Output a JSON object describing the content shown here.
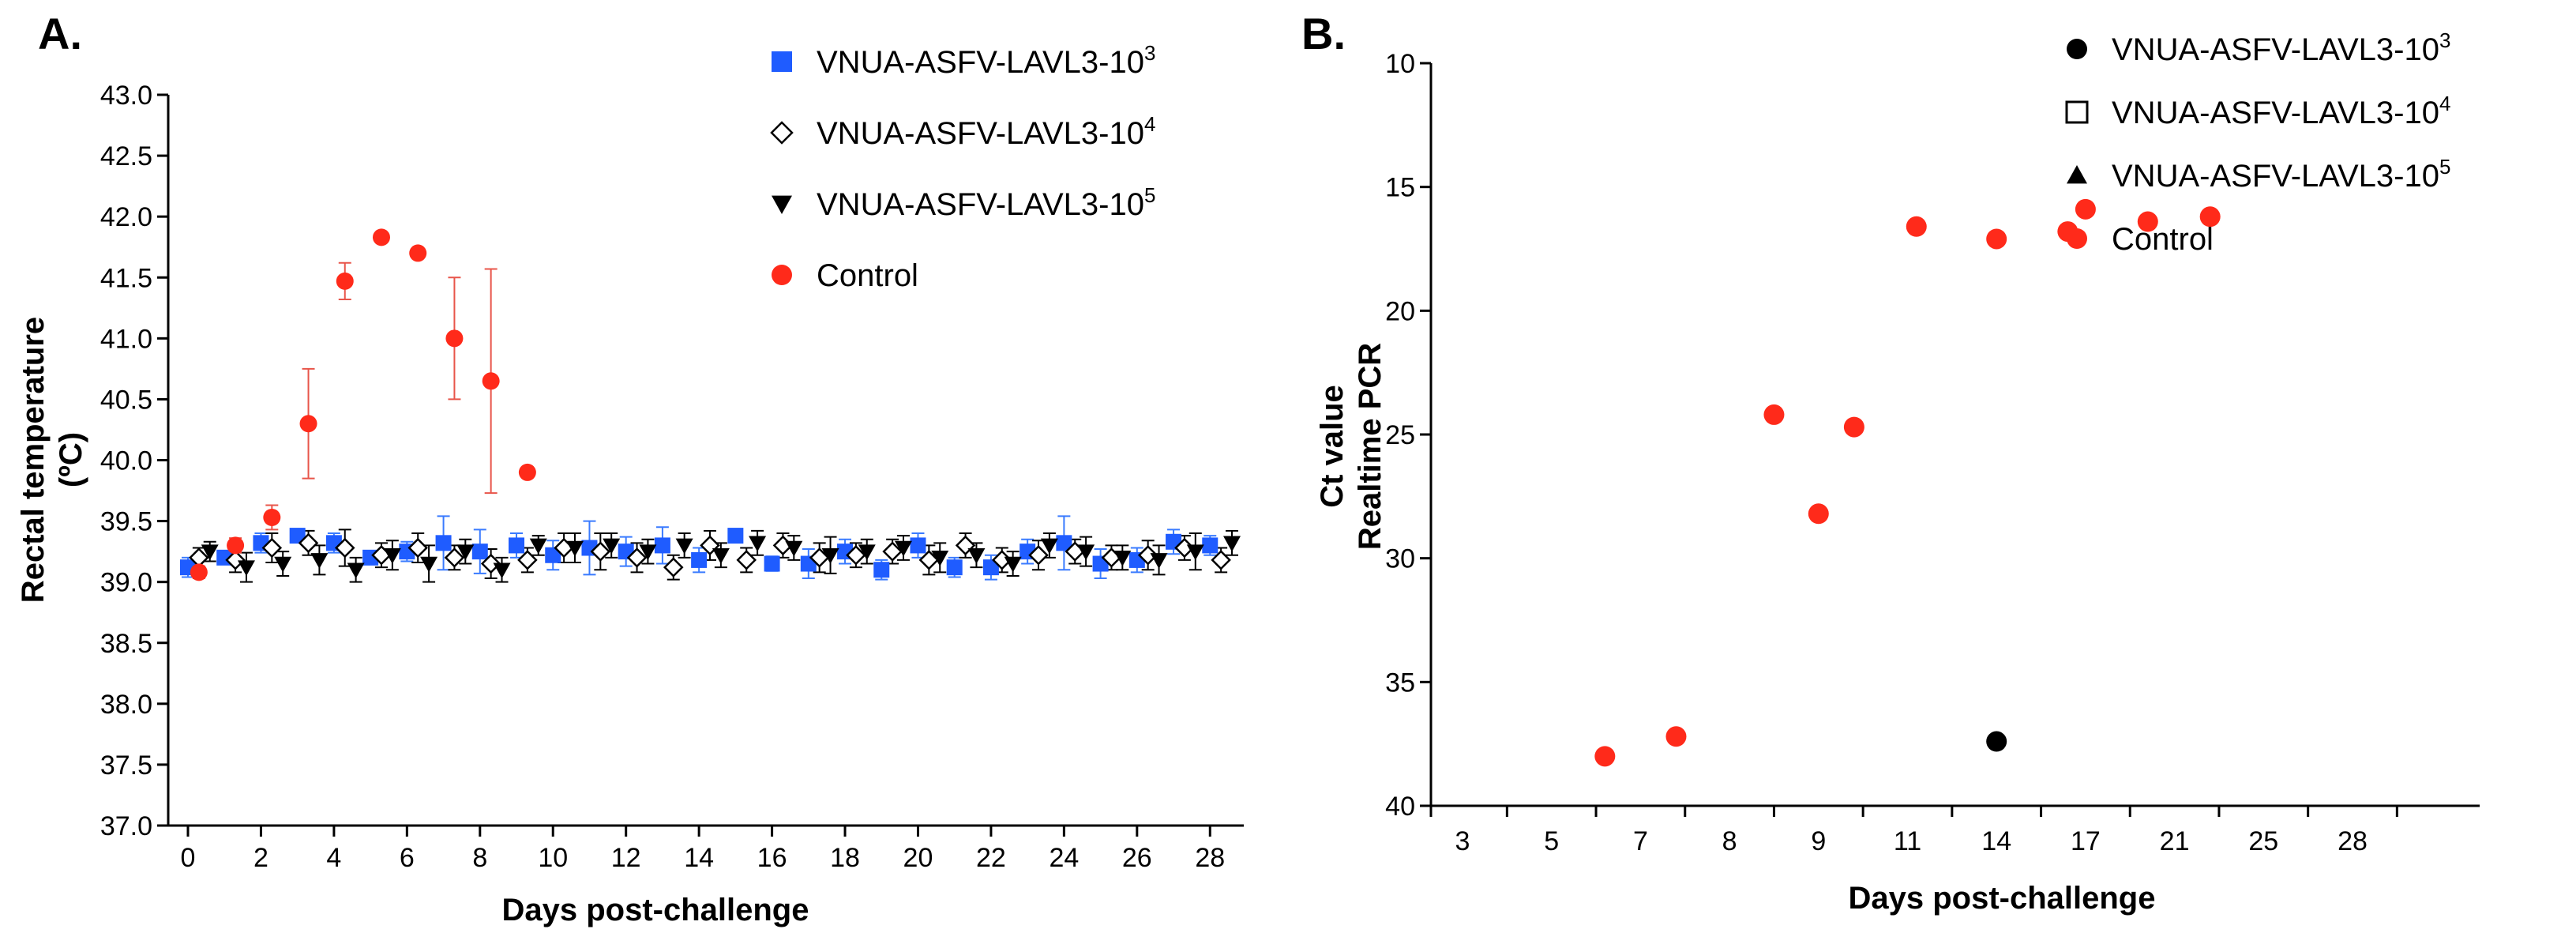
{
  "colors": {
    "blue": "#1f5cff",
    "black": "#000000",
    "red": "#ff2a1a",
    "errorRed": "#e8554a",
    "errorBlue": "#3a7bff"
  },
  "chart_data": [
    {
      "panel": "A.",
      "type": "scatter",
      "title": "",
      "xlabel": "Days post-challenge",
      "ylabel_line1": "Rectal temperature",
      "ylabel_line2": "(ºC)",
      "xlim": [
        -0.5,
        28.5
      ],
      "ylim": [
        37.0,
        43.0
      ],
      "yticks": [
        37.0,
        37.5,
        38.0,
        38.5,
        39.0,
        39.5,
        40.0,
        40.5,
        41.0,
        41.5,
        42.0,
        42.5,
        43.0
      ],
      "ytick_labels": [
        "37.0",
        "37.5",
        "38.0",
        "38.5",
        "39.0",
        "39.5",
        "40.0",
        "40.5",
        "41.0",
        "41.5",
        "42.0",
        "42.5",
        "43.0"
      ],
      "xticks": [
        0,
        2,
        4,
        6,
        8,
        10,
        12,
        14,
        16,
        18,
        20,
        22,
        24,
        26,
        28
      ],
      "xtick_labels": [
        "0",
        "2",
        "4",
        "6",
        "8",
        "10",
        "12",
        "14",
        "16",
        "18",
        "20",
        "22",
        "24",
        "26",
        "28"
      ],
      "legend_position": "top-right",
      "series": [
        {
          "name": "VNUA-ASFV-LAVL3-10",
          "sup": "3",
          "marker": "square",
          "color": "blue",
          "x": [
            0,
            1,
            2,
            3,
            4,
            5,
            6,
            7,
            8,
            9,
            10,
            11,
            12,
            13,
            14,
            15,
            16,
            17,
            18,
            19,
            20,
            21,
            22,
            23,
            24,
            25,
            26,
            27,
            28
          ],
          "y": [
            39.12,
            39.2,
            39.32,
            39.38,
            39.32,
            39.2,
            39.25,
            39.32,
            39.25,
            39.3,
            39.22,
            39.28,
            39.25,
            39.3,
            39.18,
            39.38,
            39.15,
            39.15,
            39.25,
            39.1,
            39.3,
            39.12,
            39.12,
            39.25,
            39.32,
            39.15,
            39.18,
            39.33,
            39.3
          ],
          "err": [
            0.08,
            0.05,
            0.08,
            0.05,
            0.08,
            0.05,
            0.08,
            0.22,
            0.18,
            0.1,
            0.12,
            0.22,
            0.12,
            0.15,
            0.1,
            0.05,
            0.06,
            0.12,
            0.1,
            0.08,
            0.1,
            0.08,
            0.1,
            0.1,
            0.22,
            0.12,
            0.1,
            0.1,
            0.08
          ]
        },
        {
          "name": "VNUA-ASFV-LAVL3-10",
          "sup": "4",
          "marker": "diamond",
          "color": "black",
          "x": [
            0.3,
            1.3,
            2.3,
            3.3,
            4.3,
            5.3,
            6.3,
            7.3,
            8.3,
            9.3,
            10.3,
            11.3,
            12.3,
            13.3,
            14.3,
            15.3,
            16.3,
            17.3,
            18.3,
            19.3,
            20.3,
            21.3,
            22.3,
            23.3,
            24.3,
            25.3,
            26.3,
            27.3,
            28.3
          ],
          "y": [
            39.2,
            39.18,
            39.28,
            39.32,
            39.28,
            39.22,
            39.28,
            39.2,
            39.15,
            39.18,
            39.28,
            39.25,
            39.2,
            39.12,
            39.3,
            39.18,
            39.3,
            39.2,
            39.22,
            39.25,
            39.18,
            39.3,
            39.18,
            39.22,
            39.25,
            39.2,
            39.22,
            39.28,
            39.18
          ],
          "err": [
            0.08,
            0.1,
            0.12,
            0.1,
            0.15,
            0.1,
            0.12,
            0.1,
            0.12,
            0.1,
            0.12,
            0.15,
            0.12,
            0.1,
            0.12,
            0.1,
            0.1,
            0.12,
            0.1,
            0.1,
            0.12,
            0.1,
            0.1,
            0.12,
            0.1,
            0.1,
            0.12,
            0.1,
            0.1
          ]
        },
        {
          "name": "VNUA-ASFV-LAVL3-10",
          "sup": "5",
          "marker": "triangle-down",
          "color": "black",
          "x": [
            0.6,
            1.6,
            2.6,
            3.6,
            4.6,
            5.6,
            6.6,
            7.6,
            8.6,
            9.6,
            10.6,
            11.6,
            12.6,
            13.6,
            14.6,
            15.6,
            16.6,
            17.6,
            18.6,
            19.6,
            20.6,
            21.6,
            22.6,
            23.6,
            24.6,
            25.6,
            26.6,
            27.6,
            28.6
          ],
          "y": [
            39.25,
            39.12,
            39.15,
            39.18,
            39.1,
            39.22,
            39.15,
            39.25,
            39.1,
            39.3,
            39.28,
            39.3,
            39.25,
            39.3,
            39.22,
            39.32,
            39.28,
            39.22,
            39.25,
            39.28,
            39.2,
            39.22,
            39.15,
            39.3,
            39.25,
            39.2,
            39.18,
            39.25,
            39.32
          ],
          "err": [
            0.08,
            0.12,
            0.1,
            0.12,
            0.1,
            0.12,
            0.15,
            0.1,
            0.1,
            0.08,
            0.12,
            0.1,
            0.1,
            0.1,
            0.1,
            0.1,
            0.1,
            0.15,
            0.1,
            0.1,
            0.12,
            0.1,
            0.1,
            0.1,
            0.12,
            0.1,
            0.12,
            0.15,
            0.1
          ]
        },
        {
          "name": "Control",
          "sup": "",
          "marker": "circle",
          "color": "red",
          "x": [
            0.3,
            1.3,
            2.3,
            3.3,
            4.3,
            5.3,
            6.3,
            7.3,
            8.3,
            9.3
          ],
          "y": [
            39.08,
            39.3,
            39.53,
            40.3,
            41.47,
            41.83,
            41.7,
            41.0,
            40.65,
            39.9
          ],
          "err": [
            0.05,
            0.06,
            0.1,
            0.45,
            0.15,
            0.04,
            0.04,
            0.5,
            0.92,
            0.04
          ]
        }
      ]
    },
    {
      "panel": "B.",
      "type": "scatter",
      "title": "",
      "xlabel": "Days post-challenge",
      "ylabel_line1": "Ct value",
      "ylabel_line2": "Realtime PCR",
      "ylim": [
        10,
        40
      ],
      "y_inverted": true,
      "yticks": [
        10,
        15,
        20,
        25,
        30,
        35,
        40
      ],
      "ytick_labels": [
        "10",
        "15",
        "20",
        "25",
        "30",
        "35",
        "40"
      ],
      "categories": [
        "3",
        "5",
        "7",
        "8",
        "9",
        "11",
        "14",
        "17",
        "21",
        "25",
        "28"
      ],
      "legend_position": "top-right",
      "series": [
        {
          "name": "VNUA-ASFV-LAVL3-10",
          "sup": "3",
          "marker": "circle",
          "color": "black",
          "x": [
            7
          ],
          "y": [
            37.4
          ]
        },
        {
          "name": "VNUA-ASFV-LAVL3-10",
          "sup": "4",
          "marker": "square-open",
          "color": "black",
          "x": [],
          "y": []
        },
        {
          "name": "VNUA-ASFV-LAVL3-10",
          "sup": "5",
          "marker": "triangle-up",
          "color": "black",
          "x": [],
          "y": []
        },
        {
          "name": "Control",
          "sup": "",
          "marker": "circle",
          "color": "red",
          "x": [
            2.6,
            3.4,
            4.5,
            5.0,
            5.4,
            6.1,
            7.0,
            7.8,
            8.0,
            8.7,
            9.4
          ],
          "y": [
            38.0,
            37.2,
            24.2,
            28.2,
            24.7,
            16.6,
            17.1,
            16.8,
            15.9,
            16.4,
            16.2
          ]
        }
      ]
    }
  ]
}
